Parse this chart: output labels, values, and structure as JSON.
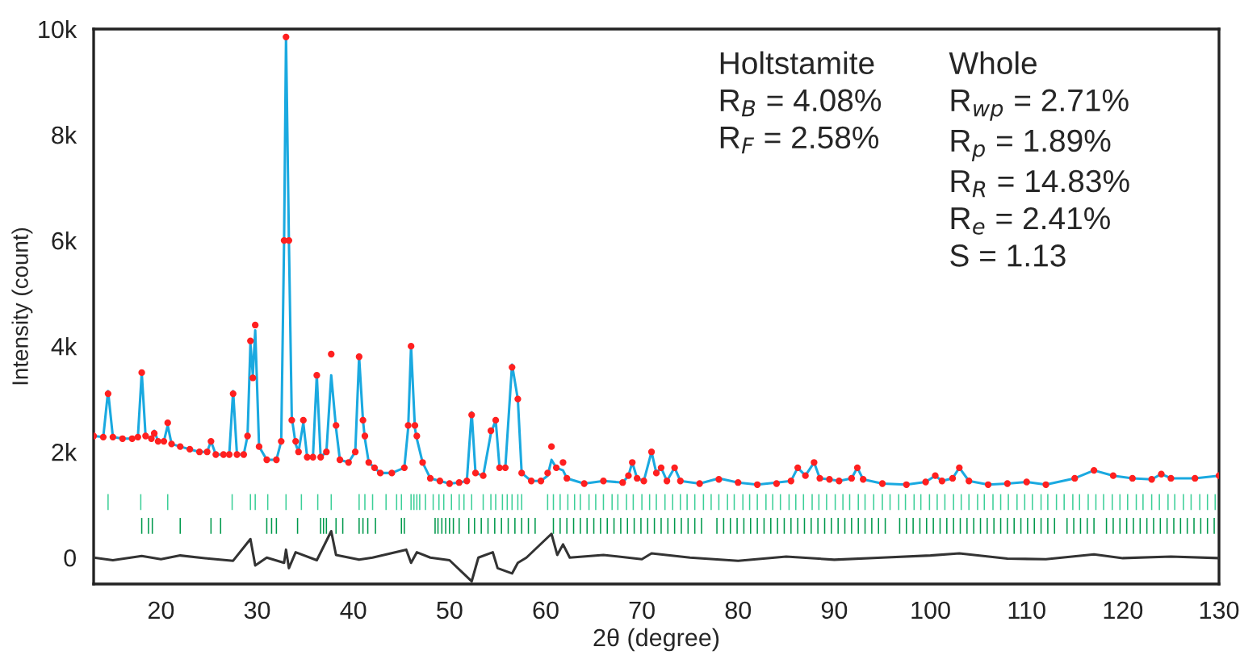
{
  "chart_data": {
    "type": "line",
    "xlabel": "2θ (degree)",
    "ylabel": "Intensity (count)",
    "xlim": [
      13,
      130
    ],
    "xticks": [
      20,
      30,
      40,
      50,
      60,
      70,
      80,
      90,
      100,
      110,
      120,
      130
    ],
    "ylim": [
      -500,
      10000
    ],
    "yticks": [
      {
        "value": 0,
        "label": "0"
      },
      {
        "value": 2000,
        "label": "2k"
      },
      {
        "value": 4000,
        "label": "4k"
      },
      {
        "value": 6000,
        "label": "6k"
      },
      {
        "value": 8000,
        "label": "8k"
      },
      {
        "value": 10000,
        "label": "10k"
      }
    ],
    "grid": false,
    "legend": false,
    "annotations": [
      "Holtstamite\nR$_{B}$ = 4.08%\nR$_{F}$ = 2.58%",
      "Whole\nR$_{wp}$ = 2.71%\nR$_{p}$ = 1.89%\nR$_{R}$ = 14.83%\nR$_{e}$ = 2.41%\nS = 1.13"
    ],
    "series": [
      {
        "type": "scatter",
        "marker": "circle",
        "color": "#ff2020",
        "x": [
          13,
          14.0,
          14.5,
          15.0,
          16,
          17,
          17.6,
          18.0,
          18.4,
          19.0,
          19.3,
          19.7,
          20.3,
          20.7,
          21.1,
          22,
          23,
          24,
          24.8,
          25.2,
          25.7,
          26.5,
          27.1,
          27.5,
          27.9,
          28.6,
          29.0,
          29.3,
          29.55,
          29.8,
          30.2,
          31,
          32,
          32.5,
          32.8,
          33.0,
          33.3,
          33.6,
          34.0,
          34.3,
          34.8,
          35.2,
          35.8,
          36.2,
          36.6,
          37.2,
          37.7,
          38.2,
          38.6,
          39.5,
          40.2,
          40.6,
          41.0,
          41.2,
          41.6,
          42.2,
          42.8,
          44,
          45.3,
          45.7,
          46.0,
          46.4,
          46.6,
          47.2,
          48,
          49,
          50,
          51,
          51.8,
          52.3,
          52.7,
          53.5,
          54.3,
          54.8,
          55.2,
          55.8,
          56.5,
          57.1,
          57.5,
          58.5,
          59.5,
          60.2,
          60.6,
          61.1,
          61.8,
          62.2,
          64,
          66,
          68,
          68.6,
          69.0,
          69.5,
          70.2,
          71.0,
          71.5,
          72.0,
          72.6,
          73.4,
          74,
          76,
          78,
          80,
          82,
          84,
          85.5,
          86.2,
          87,
          87.9,
          88.5,
          89.5,
          90.5,
          91.8,
          92.4,
          93,
          95,
          97.5,
          99.5,
          100.5,
          101.2,
          102.3,
          103,
          104,
          106,
          108,
          110,
          112,
          115,
          117,
          119,
          121,
          123,
          124,
          125,
          127.5,
          130
        ],
        "values": [
          2300,
          2280,
          3100,
          2280,
          2250,
          2250,
          2280,
          3500,
          2300,
          2250,
          2350,
          2200,
          2200,
          2550,
          2150,
          2100,
          2050,
          2000,
          2000,
          2200,
          1950,
          1950,
          1950,
          3100,
          1950,
          1950,
          2300,
          4100,
          3400,
          4400,
          2100,
          1850,
          1850,
          2200,
          6000,
          9850,
          6000,
          2600,
          2200,
          2000,
          2600,
          1900,
          1900,
          3450,
          1900,
          2000,
          3850,
          2500,
          1850,
          1800,
          2000,
          3800,
          2600,
          2300,
          1800,
          1700,
          1600,
          1600,
          1700,
          2500,
          4000,
          2500,
          2300,
          1800,
          1500,
          1450,
          1400,
          1420,
          1450,
          2700,
          1600,
          1550,
          2400,
          2600,
          1700,
          1700,
          3600,
          3000,
          1600,
          1450,
          1450,
          1600,
          2100,
          1700,
          1800,
          1500,
          1400,
          1450,
          1420,
          1550,
          1800,
          1500,
          1450,
          2000,
          1600,
          1700,
          1450,
          1700,
          1450,
          1400,
          1480,
          1420,
          1380,
          1400,
          1450,
          1700,
          1550,
          1800,
          1500,
          1480,
          1450,
          1500,
          1700,
          1480,
          1400,
          1380,
          1430,
          1550,
          1450,
          1500,
          1700,
          1450,
          1380,
          1400,
          1430,
          1380,
          1500,
          1650,
          1550,
          1500,
          1480,
          1580,
          1500,
          1500,
          1550
        ]
      },
      {
        "color": "#1aa9e0",
        "x": [
          13,
          14.0,
          14.5,
          15.0,
          16,
          17,
          17.6,
          18.0,
          18.4,
          19.0,
          19.3,
          19.7,
          20.3,
          20.7,
          21.1,
          22,
          23,
          24,
          24.8,
          25.2,
          25.7,
          26.5,
          27.1,
          27.5,
          27.9,
          28.6,
          29.0,
          29.3,
          29.55,
          29.8,
          30.2,
          31,
          32,
          32.5,
          32.8,
          33.0,
          33.3,
          33.6,
          34.0,
          34.3,
          34.8,
          35.2,
          35.8,
          36.2,
          36.6,
          37.2,
          37.7,
          38.2,
          38.6,
          39.5,
          40.2,
          40.6,
          41.0,
          41.2,
          41.6,
          42.2,
          42.8,
          44,
          45.3,
          45.7,
          46.0,
          46.4,
          46.6,
          47.2,
          48,
          49,
          50,
          51,
          51.8,
          52.3,
          52.7,
          53.5,
          54.3,
          54.8,
          55.2,
          55.8,
          56.5,
          57.1,
          57.5,
          58.5,
          59.5,
          60.2,
          60.6,
          61.1,
          61.8,
          62.2,
          64,
          66,
          68,
          68.6,
          69.0,
          69.5,
          70.2,
          71.0,
          71.5,
          72.0,
          72.6,
          73.4,
          74,
          76,
          78,
          80,
          82,
          84,
          85.5,
          86.2,
          87,
          87.9,
          88.5,
          89.5,
          90.5,
          91.8,
          92.4,
          93,
          95,
          97.5,
          99.5,
          100.5,
          101.2,
          102.3,
          103,
          104,
          106,
          108,
          110,
          112,
          115,
          117,
          119,
          121,
          123,
          124,
          125,
          127.5,
          130
        ],
        "values": [
          2300,
          2280,
          3150,
          2280,
          2250,
          2250,
          2280,
          3500,
          2300,
          2250,
          2400,
          2200,
          2200,
          2500,
          2150,
          2100,
          2050,
          2000,
          2000,
          2200,
          1950,
          1950,
          1950,
          3150,
          1950,
          1950,
          2300,
          4050,
          3450,
          4300,
          2100,
          1850,
          1850,
          2200,
          6000,
          9850,
          6000,
          2650,
          2150,
          2000,
          2550,
          1900,
          1900,
          3450,
          1900,
          2000,
          3450,
          2450,
          1850,
          1800,
          2000,
          3800,
          2600,
          2250,
          1800,
          1700,
          1600,
          1600,
          1700,
          2450,
          4000,
          2450,
          2250,
          1800,
          1500,
          1450,
          1400,
          1420,
          1450,
          2750,
          1600,
          1550,
          2350,
          2600,
          1700,
          1700,
          3650,
          3000,
          1600,
          1450,
          1450,
          1550,
          1850,
          1700,
          1650,
          1500,
          1400,
          1450,
          1420,
          1550,
          1800,
          1500,
          1450,
          2000,
          1600,
          1700,
          1450,
          1700,
          1450,
          1400,
          1500,
          1420,
          1380,
          1420,
          1450,
          1700,
          1550,
          1800,
          1500,
          1480,
          1450,
          1500,
          1700,
          1480,
          1400,
          1380,
          1430,
          1550,
          1450,
          1500,
          1700,
          1450,
          1380,
          1400,
          1430,
          1380,
          1500,
          1650,
          1550,
          1500,
          1480,
          1580,
          1500,
          1500,
          1550
        ]
      },
      {
        "color": "#333333",
        "x": [
          13,
          15,
          18,
          20,
          22,
          25,
          27.5,
          29.3,
          29.8,
          31,
          32.8,
          33,
          33.3,
          34,
          36.2,
          37.7,
          38.2,
          40.6,
          42,
          45.5,
          46,
          46.6,
          48,
          50,
          52.3,
          53,
          54.5,
          55,
          56.5,
          57.1,
          58,
          60.6,
          61.2,
          61.8,
          62.5,
          66,
          70,
          71,
          75,
          80,
          85,
          90,
          95,
          100,
          103,
          108,
          112,
          117,
          120,
          125,
          130
        ],
        "values": [
          0,
          -50,
          30,
          -30,
          40,
          -20,
          -60,
          350,
          -150,
          0,
          -100,
          150,
          -200,
          100,
          -50,
          500,
          50,
          -40,
          0,
          150,
          -100,
          100,
          0,
          -50,
          -450,
          0,
          100,
          -200,
          -300,
          -100,
          0,
          450,
          50,
          250,
          0,
          50,
          -30,
          80,
          0,
          -60,
          20,
          -40,
          0,
          40,
          80,
          -20,
          -30,
          60,
          -10,
          20,
          -10
        ]
      },
      {
        "type": "bar",
        "color": "#3ccf98",
        "base": [
          900,
          900,
          900,
          900,
          900,
          900,
          900,
          900,
          900,
          900,
          900,
          900,
          900,
          900,
          900,
          900,
          900,
          900,
          900,
          900,
          900,
          900,
          900,
          900,
          900,
          900,
          900,
          900,
          900,
          900,
          900,
          900,
          900,
          900,
          900,
          900,
          900,
          900,
          900,
          900,
          900,
          900,
          900,
          900,
          900,
          900,
          900,
          900,
          900,
          900,
          900,
          900,
          900,
          900,
          900,
          900,
          900,
          900,
          900,
          900,
          900,
          900,
          900,
          900,
          900,
          900,
          900,
          900,
          900,
          900,
          900,
          900,
          900,
          900,
          900,
          900,
          900,
          900,
          900,
          900,
          900,
          900,
          900,
          900,
          900,
          900,
          900,
          900,
          900,
          900,
          900,
          900,
          900,
          900,
          900,
          900,
          900,
          900,
          900,
          900,
          900,
          900,
          900,
          900,
          900,
          900,
          900,
          900,
          900,
          900,
          900,
          900,
          900,
          900,
          900,
          900,
          900,
          900,
          900,
          900,
          900,
          900,
          900,
          900
        ],
        "x": [
          14.5,
          17.9,
          20.7,
          27.4,
          29.3,
          29.8,
          31.1,
          33.0,
          34.6,
          36.3,
          37.7,
          40.6,
          41.2,
          42.0,
          43.4,
          44.5,
          45.0,
          46.0,
          46.3,
          46.6,
          46.9,
          47.5,
          48.3,
          48.9,
          49.4,
          50.2,
          51.0,
          51.5,
          52.3,
          53.5,
          54.3,
          54.8,
          55.5,
          56.0,
          56.5,
          57.1,
          57.5,
          60.2,
          60.8,
          61.5,
          62.3,
          63.0,
          63.6,
          64.5,
          65.2,
          66.0,
          66.9,
          67.5,
          68.4,
          69.1,
          70.0,
          70.8,
          71.5,
          72.4,
          73.2,
          74.0,
          74.7,
          75.5,
          76.4,
          77.2,
          78.0,
          78.9,
          79.6,
          80.5,
          81.2,
          82.0,
          82.9,
          83.6,
          84.4,
          85.3,
          86.0,
          86.8,
          87.7,
          88.4,
          89.2,
          90.1,
          90.9,
          91.6,
          92.5,
          93.2,
          94.1,
          95.0,
          95.8,
          96.7,
          97.4,
          98.3,
          99.0,
          99.9,
          100.7,
          101.5,
          102.4,
          103.2,
          104.0,
          104.9,
          105.6,
          106.5,
          107.3,
          108.1,
          109.0,
          109.8,
          110.6,
          111.5,
          112.2,
          113.1,
          113.9,
          114.8,
          115.5,
          116.4,
          117.2,
          118.0,
          118.9,
          119.7,
          120.5,
          121.4,
          122.1,
          123.0,
          123.8,
          124.7,
          125.4,
          126.3,
          127.1,
          128.0,
          128.8,
          129.6
        ],
        "values": [
          300,
          300,
          300,
          300,
          300,
          300,
          300,
          300,
          300,
          300,
          300,
          300,
          300,
          300,
          300,
          300,
          300,
          300,
          300,
          300,
          300,
          300,
          300,
          300,
          300,
          300,
          300,
          300,
          300,
          300,
          300,
          300,
          300,
          300,
          300,
          300,
          300,
          300,
          300,
          300,
          300,
          300,
          300,
          300,
          300,
          300,
          300,
          300,
          300,
          300,
          300,
          300,
          300,
          300,
          300,
          300,
          300,
          300,
          300,
          300,
          300,
          300,
          300,
          300,
          300,
          300,
          300,
          300,
          300,
          300,
          300,
          300,
          300,
          300,
          300,
          300,
          300,
          300,
          300,
          300,
          300,
          300,
          300,
          300,
          300,
          300,
          300,
          300,
          300,
          300,
          300,
          300,
          300,
          300,
          300,
          300,
          300,
          300,
          300,
          300,
          300,
          300,
          300,
          300,
          300,
          300,
          300,
          300,
          300,
          300,
          300,
          300,
          300,
          300,
          300,
          300,
          300,
          300,
          300,
          300,
          300,
          300,
          300,
          300
        ]
      },
      {
        "type": "bar",
        "color": "#00994c",
        "base": [
          450,
          450,
          450,
          450,
          450,
          450,
          450,
          450,
          450,
          450,
          450,
          450,
          450,
          450,
          450,
          450,
          450,
          450,
          450,
          450,
          450,
          450,
          450,
          450,
          450,
          450,
          450,
          450,
          450,
          450,
          450,
          450,
          450,
          450,
          450,
          450,
          450,
          450,
          450,
          450,
          450,
          450,
          450,
          450,
          450,
          450,
          450,
          450,
          450,
          450,
          450,
          450,
          450,
          450,
          450,
          450,
          450,
          450,
          450,
          450,
          450,
          450,
          450,
          450,
          450,
          450,
          450,
          450,
          450,
          450,
          450,
          450,
          450,
          450,
          450,
          450,
          450,
          450,
          450,
          450,
          450,
          450,
          450,
          450,
          450,
          450,
          450,
          450,
          450,
          450,
          450,
          450,
          450,
          450,
          450,
          450,
          450,
          450,
          450,
          450,
          450,
          450,
          450,
          450,
          450,
          450,
          450,
          450,
          450,
          450,
          450,
          450,
          450,
          450,
          450,
          450,
          450,
          450,
          450,
          450,
          450,
          450,
          450,
          450,
          450,
          450,
          450,
          450,
          450,
          450,
          450,
          450,
          450,
          450
        ],
        "x": [
          18.0,
          18.7,
          19.1,
          22.0,
          25.2,
          26.2,
          31.0,
          31.5,
          32.0,
          34.2,
          36.6,
          36.9,
          37.2,
          38.2,
          38.9,
          40.6,
          41.0,
          41.5,
          42.3,
          45.0,
          45.3,
          48.5,
          48.8,
          49.2,
          49.6,
          50.0,
          50.4,
          51.0,
          52.0,
          52.6,
          53.3,
          54.0,
          54.7,
          55.4,
          56.1,
          56.8,
          57.5,
          58.2,
          58.9,
          60.8,
          61.5,
          62.2,
          62.9,
          63.6,
          64.3,
          65.0,
          65.7,
          66.4,
          67.1,
          67.8,
          68.5,
          69.2,
          69.9,
          70.6,
          71.3,
          72.0,
          72.7,
          73.4,
          74.1,
          74.8,
          75.5,
          76.2,
          77.8,
          78.5,
          79.2,
          79.9,
          80.6,
          81.3,
          82.0,
          82.7,
          83.4,
          84.1,
          84.8,
          85.5,
          86.2,
          86.9,
          87.6,
          88.3,
          89.0,
          89.7,
          90.4,
          91.1,
          91.8,
          92.5,
          93.2,
          93.9,
          94.6,
          95.3,
          96.8,
          97.5,
          98.2,
          98.9,
          99.6,
          100.3,
          101.0,
          101.7,
          102.4,
          103.1,
          103.8,
          104.5,
          105.2,
          105.9,
          106.6,
          107.3,
          108.0,
          108.7,
          109.4,
          110.1,
          110.8,
          111.5,
          112.2,
          112.9,
          114.2,
          114.9,
          115.6,
          116.3,
          117.0,
          118.3,
          119.0,
          119.7,
          120.4,
          121.1,
          121.8,
          122.5,
          123.2,
          123.9,
          124.6,
          125.3,
          126.0,
          126.7,
          127.4,
          128.1,
          128.8,
          129.5
        ],
        "values": [
          300,
          300,
          300,
          300,
          300,
          300,
          300,
          300,
          300,
          300,
          300,
          300,
          300,
          300,
          300,
          300,
          300,
          300,
          300,
          300,
          300,
          300,
          300,
          300,
          300,
          300,
          300,
          300,
          300,
          300,
          300,
          300,
          300,
          300,
          300,
          300,
          300,
          300,
          300,
          300,
          300,
          300,
          300,
          300,
          300,
          300,
          300,
          300,
          300,
          300,
          300,
          300,
          300,
          300,
          300,
          300,
          300,
          300,
          300,
          300,
          300,
          300,
          300,
          300,
          300,
          300,
          300,
          300,
          300,
          300,
          300,
          300,
          300,
          300,
          300,
          300,
          300,
          300,
          300,
          300,
          300,
          300,
          300,
          300,
          300,
          300,
          300,
          300,
          300,
          300,
          300,
          300,
          300,
          300,
          300,
          300,
          300,
          300,
          300,
          300,
          300,
          300,
          300,
          300,
          300,
          300,
          300,
          300,
          300,
          300,
          300,
          300,
          300,
          300,
          300,
          300,
          300,
          300,
          300,
          300,
          300,
          300,
          300,
          300,
          300,
          300,
          300,
          300,
          300,
          300,
          300,
          300,
          300,
          300
        ]
      }
    ]
  }
}
